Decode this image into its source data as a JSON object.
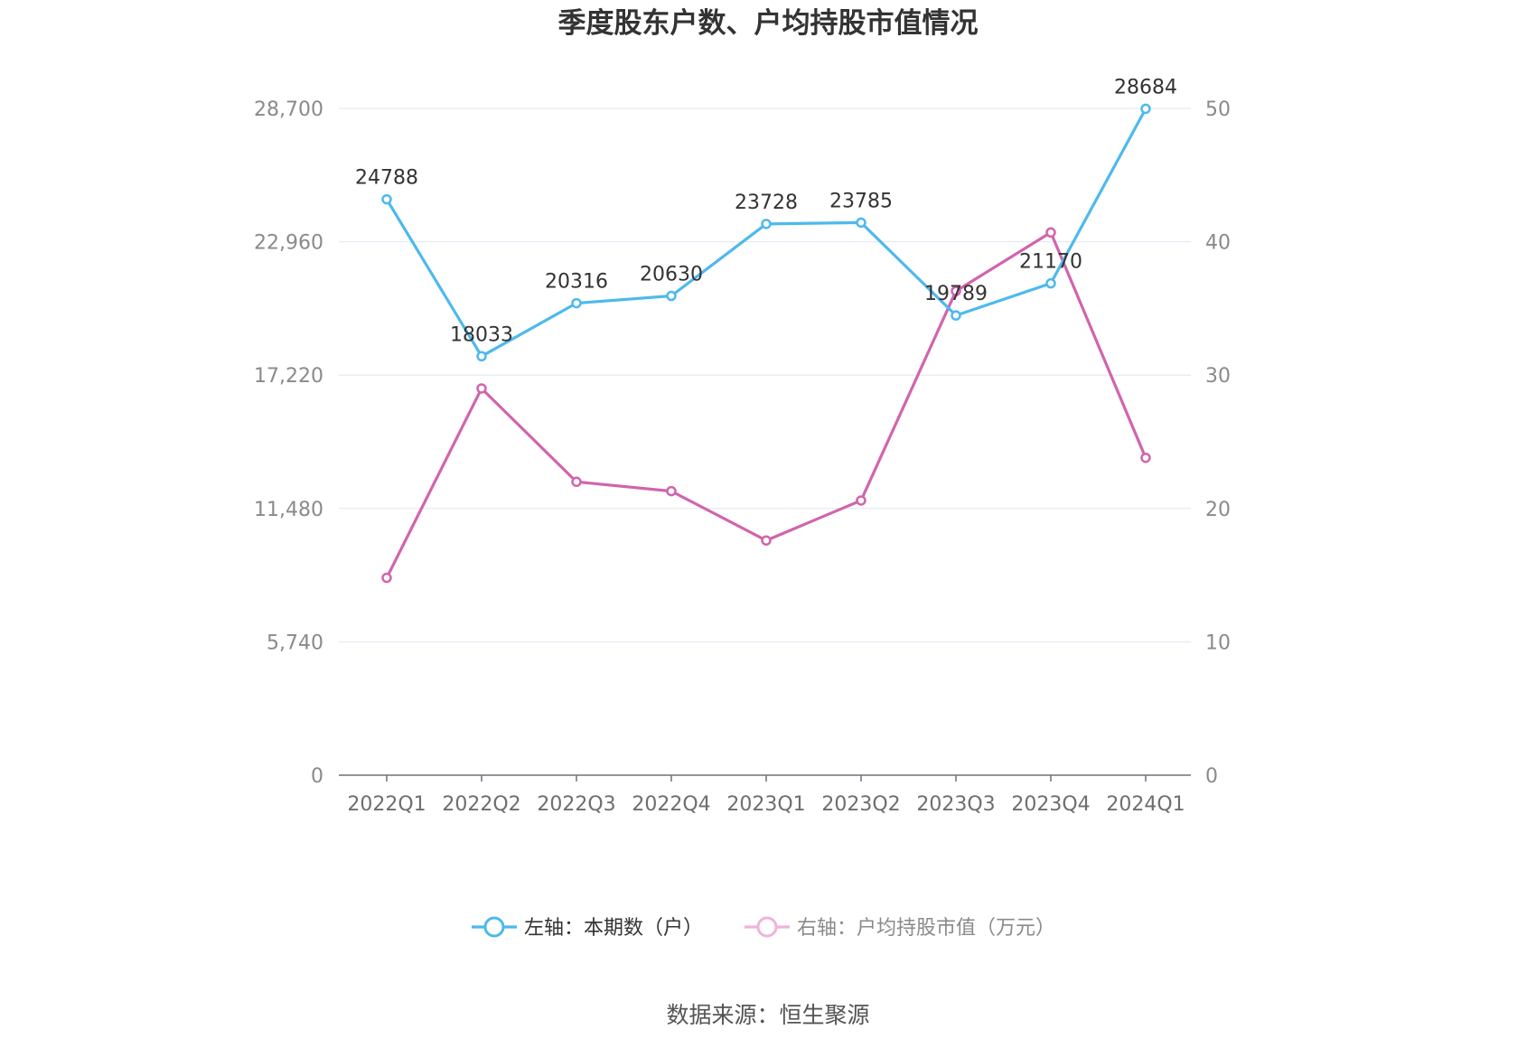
{
  "chart_data": {
    "type": "line",
    "title": "季度股东户数、户均持股市值情况",
    "categories": [
      "2022Q1",
      "2022Q2",
      "2022Q3",
      "2022Q4",
      "2023Q1",
      "2023Q2",
      "2023Q3",
      "2023Q4",
      "2024Q1"
    ],
    "y_left": {
      "ylim": [
        0,
        28700
      ],
      "ticks": [
        "0",
        "5,740",
        "11,480",
        "17,220",
        "22,960",
        "28,700"
      ]
    },
    "y_right": {
      "ylim": [
        0,
        50
      ],
      "ticks": [
        "0",
        "10",
        "20",
        "30",
        "40",
        "50"
      ]
    },
    "grid": true,
    "legend_position": "bottom",
    "series": [
      {
        "name": "左轴：本期数（户）",
        "axis": "left",
        "color": "#4db9ed",
        "values": [
          24788,
          18033,
          20316,
          20630,
          23728,
          23785,
          19789,
          21170,
          28684
        ],
        "labels": [
          "24788",
          "18033",
          "20316",
          "20630",
          "23728",
          "23785",
          "19789",
          "21170",
          "28684"
        ]
      },
      {
        "name": "右轴：户均持股市值（万元）",
        "axis": "right",
        "color": "#d164ad",
        "values": [
          14.8,
          29.0,
          22.0,
          21.3,
          17.6,
          20.6,
          36.3,
          40.7,
          23.8
        ]
      }
    ],
    "source": "数据来源：恒生聚源"
  }
}
